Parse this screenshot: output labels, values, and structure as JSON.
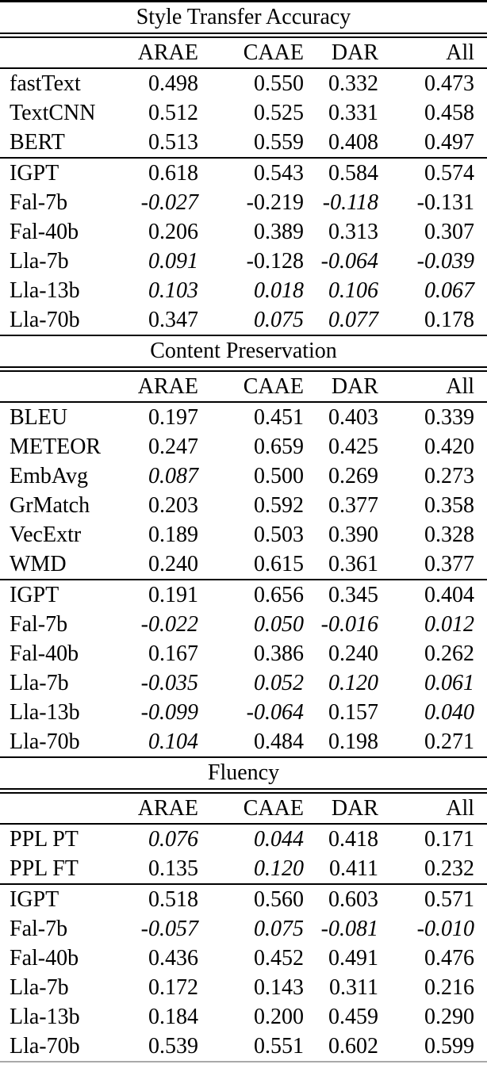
{
  "sections": [
    {
      "title": "Style Transfer Accuracy",
      "columns": [
        "",
        "ARAE",
        "CAAE",
        "DAR",
        "All"
      ],
      "groups": [
        {
          "rows": [
            {
              "label": "fastText",
              "values": [
                "0.498",
                "0.550",
                "0.332",
                "0.473"
              ],
              "styles": [
                "",
                "b",
                "",
                ""
              ]
            },
            {
              "label": "TextCNN",
              "values": [
                "0.512",
                "0.525",
                "0.331",
                "0.458"
              ],
              "styles": [
                "",
                "",
                "",
                ""
              ]
            },
            {
              "label": "BERT",
              "values": [
                "0.513",
                "0.559",
                "0.408",
                "0.497"
              ],
              "styles": [
                "",
                "",
                "",
                ""
              ]
            }
          ]
        },
        {
          "rows": [
            {
              "label": "IGPT",
              "values": [
                "0.618",
                "0.543",
                "0.584",
                "0.574"
              ],
              "styles": [
                "b",
                "",
                "b",
                "b"
              ]
            },
            {
              "label": "Fal-7b",
              "values": [
                "-0.027",
                "-0.219",
                "-0.118",
                "-0.131"
              ],
              "styles": [
                "i",
                "",
                "i",
                ""
              ]
            },
            {
              "label": "Fal-40b",
              "values": [
                "0.206",
                "0.389",
                "0.313",
                "0.307"
              ],
              "styles": [
                "",
                "",
                "",
                ""
              ]
            },
            {
              "label": "Lla-7b",
              "values": [
                "0.091",
                "-0.128",
                "-0.064",
                "-0.039"
              ],
              "styles": [
                "i",
                "",
                "i",
                "i"
              ]
            },
            {
              "label": "Lla-13b",
              "values": [
                "0.103",
                "0.018",
                "0.106",
                "0.067"
              ],
              "styles": [
                "i",
                "i",
                "i",
                "i"
              ]
            },
            {
              "label": "Lla-70b",
              "values": [
                "0.347",
                "0.075",
                "0.077",
                "0.178"
              ],
              "styles": [
                "",
                "i",
                "i",
                ""
              ]
            }
          ]
        }
      ]
    },
    {
      "title": "Content Preservation",
      "columns": [
        "",
        "ARAE",
        "CAAE",
        "DAR",
        "All"
      ],
      "groups": [
        {
          "rows": [
            {
              "label": "BLEU",
              "values": [
                "0.197",
                "0.451",
                "0.403",
                "0.339"
              ],
              "styles": [
                "",
                "",
                "",
                ""
              ]
            },
            {
              "label": "METEOR",
              "values": [
                "0.247",
                "0.659",
                "0.425",
                "0.420"
              ],
              "styles": [
                "",
                "b",
                "b",
                "b"
              ]
            },
            {
              "label": "EmbAvg",
              "values": [
                "0.087",
                "0.500",
                "0.269",
                "0.273"
              ],
              "styles": [
                "i",
                "",
                "",
                ""
              ]
            },
            {
              "label": "GrMatch",
              "values": [
                "0.203",
                "0.592",
                "0.377",
                "0.358"
              ],
              "styles": [
                "",
                "",
                "",
                ""
              ]
            },
            {
              "label": "VecExtr",
              "values": [
                "0.189",
                "0.503",
                "0.390",
                "0.328"
              ],
              "styles": [
                "",
                "",
                "",
                ""
              ]
            },
            {
              "label": "WMD",
              "values": [
                "0.240",
                "0.615",
                "0.361",
                "0.377"
              ],
              "styles": [
                "b",
                "",
                "",
                ""
              ]
            }
          ]
        },
        {
          "rows": [
            {
              "label": "IGPT",
              "values": [
                "0.191",
                "0.656",
                "0.345",
                "0.404"
              ],
              "styles": [
                "",
                "",
                "",
                ""
              ]
            },
            {
              "label": "Fal-7b",
              "values": [
                "-0.022",
                "0.050",
                "-0.016",
                "0.012"
              ],
              "styles": [
                "i",
                "i",
                "i",
                "i"
              ]
            },
            {
              "label": "Fal-40b",
              "values": [
                "0.167",
                "0.386",
                "0.240",
                "0.262"
              ],
              "styles": [
                "",
                "",
                "",
                ""
              ]
            },
            {
              "label": "Lla-7b",
              "values": [
                "-0.035",
                "0.052",
                "0.120",
                "0.061"
              ],
              "styles": [
                "i",
                "i",
                "i",
                "i"
              ]
            },
            {
              "label": "Lla-13b",
              "values": [
                "-0.099",
                "-0.064",
                "0.157",
                "0.040"
              ],
              "styles": [
                "i",
                "i",
                "",
                "i"
              ]
            },
            {
              "label": "Lla-70b",
              "values": [
                "0.104",
                "0.484",
                "0.198",
                "0.271"
              ],
              "styles": [
                "i",
                "",
                "",
                ""
              ]
            }
          ]
        }
      ]
    },
    {
      "title": "Fluency",
      "columns": [
        "",
        "ARAE",
        "CAAE",
        "DAR",
        "All"
      ],
      "groups": [
        {
          "rows": [
            {
              "label": "PPL PT",
              "values": [
                "0.076",
                "0.044",
                "0.418",
                "0.171"
              ],
              "styles": [
                "i",
                "i",
                "",
                ""
              ]
            },
            {
              "label": "PPL FT",
              "values": [
                "0.135",
                "0.120",
                "0.411",
                "0.232"
              ],
              "styles": [
                "",
                "i",
                "",
                ""
              ]
            }
          ]
        },
        {
          "rows": [
            {
              "label": "IGPT",
              "values": [
                "0.518",
                "0.560",
                "0.603",
                "0.571"
              ],
              "styles": [
                "",
                "b",
                "b",
                ""
              ]
            },
            {
              "label": "Fal-7b",
              "values": [
                "-0.057",
                "0.075",
                "-0.081",
                "-0.010"
              ],
              "styles": [
                "i",
                "i",
                "i",
                "i"
              ]
            },
            {
              "label": "Fal-40b",
              "values": [
                "0.436",
                "0.452",
                "0.491",
                "0.476"
              ],
              "styles": [
                "",
                "",
                "",
                ""
              ]
            },
            {
              "label": "Lla-7b",
              "values": [
                "0.172",
                "0.143",
                "0.311",
                "0.216"
              ],
              "styles": [
                "",
                "",
                "",
                ""
              ]
            },
            {
              "label": "Lla-13b",
              "values": [
                "0.184",
                "0.200",
                "0.459",
                "0.290"
              ],
              "styles": [
                "",
                "",
                "",
                ""
              ]
            },
            {
              "label": "Lla-70b",
              "values": [
                "0.539",
                "0.551",
                "0.602",
                "0.599"
              ],
              "styles": [
                "b",
                "",
                "",
                "b"
              ]
            }
          ]
        }
      ]
    }
  ],
  "colors": {
    "text": "#000000",
    "rule": "#000000",
    "bottom_rule": "#a9a9a9",
    "background": "#ffffff"
  }
}
